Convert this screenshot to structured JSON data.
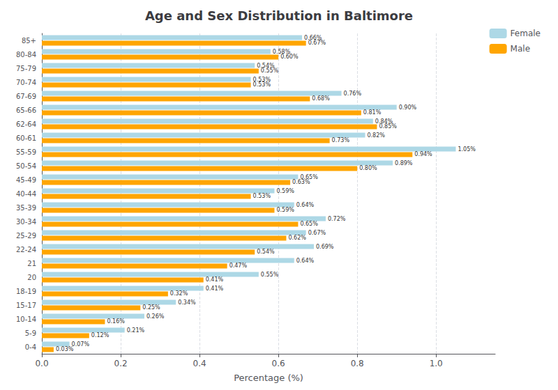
{
  "chart_data": {
    "type": "bar",
    "orientation": "horizontal",
    "title": "Age and Sex Distribution in Baltimore",
    "xlabel": "Percentage (%)",
    "categories": [
      "0-4",
      "5-9",
      "10-14",
      "15-17",
      "18-19",
      "20",
      "21",
      "22-24",
      "25-29",
      "30-34",
      "35-39",
      "40-44",
      "45-49",
      "50-54",
      "55-59",
      "60-61",
      "62-64",
      "65-66",
      "67-69",
      "70-74",
      "75-79",
      "80-84",
      "85+"
    ],
    "series": [
      {
        "name": "Female",
        "color": "#ADD8E6",
        "values": [
          0.07,
          0.21,
          0.26,
          0.34,
          0.41,
          0.55,
          0.64,
          0.69,
          0.67,
          0.72,
          0.64,
          0.59,
          0.65,
          0.89,
          1.05,
          0.82,
          0.84,
          0.9,
          0.76,
          0.53,
          0.54,
          0.58,
          0.66
        ],
        "value_labels": [
          "0.07%",
          "0.21%",
          "0.26%",
          "0.34%",
          "0.41%",
          "0.55%",
          "0.64%",
          "0.69%",
          "0.67%",
          "0.72%",
          "0.64%",
          "0.59%",
          "0.65%",
          "0.89%",
          "1.05%",
          "0.82%",
          "0.84%",
          "0.90%",
          "0.76%",
          "0.53%",
          "0.54%",
          "0.58%",
          "0.66%"
        ]
      },
      {
        "name": "Male",
        "color": "#FFA500",
        "values": [
          0.03,
          0.12,
          0.16,
          0.25,
          0.32,
          0.41,
          0.47,
          0.54,
          0.62,
          0.65,
          0.59,
          0.53,
          0.63,
          0.8,
          0.94,
          0.73,
          0.85,
          0.81,
          0.68,
          0.53,
          0.55,
          0.6,
          0.67
        ],
        "value_labels": [
          "0.03%",
          "0.12%",
          "0.16%",
          "0.25%",
          "0.32%",
          "0.41%",
          "0.47%",
          "0.54%",
          "0.62%",
          "0.65%",
          "0.59%",
          "0.53%",
          "0.63%",
          "0.80%",
          "0.94%",
          "0.73%",
          "0.85%",
          "0.81%",
          "0.68%",
          "0.53%",
          "0.55%",
          "0.60%",
          "0.67%"
        ]
      }
    ],
    "xlim": [
      0,
      1.15
    ],
    "xticks": [
      {
        "value": 0,
        "label": "0.0"
      },
      0.2,
      0.4,
      0.6,
      0.8,
      {
        "value": 1,
        "label": "1.0"
      }
    ],
    "grid": true,
    "legend": "upper right",
    "data_labels": true
  }
}
